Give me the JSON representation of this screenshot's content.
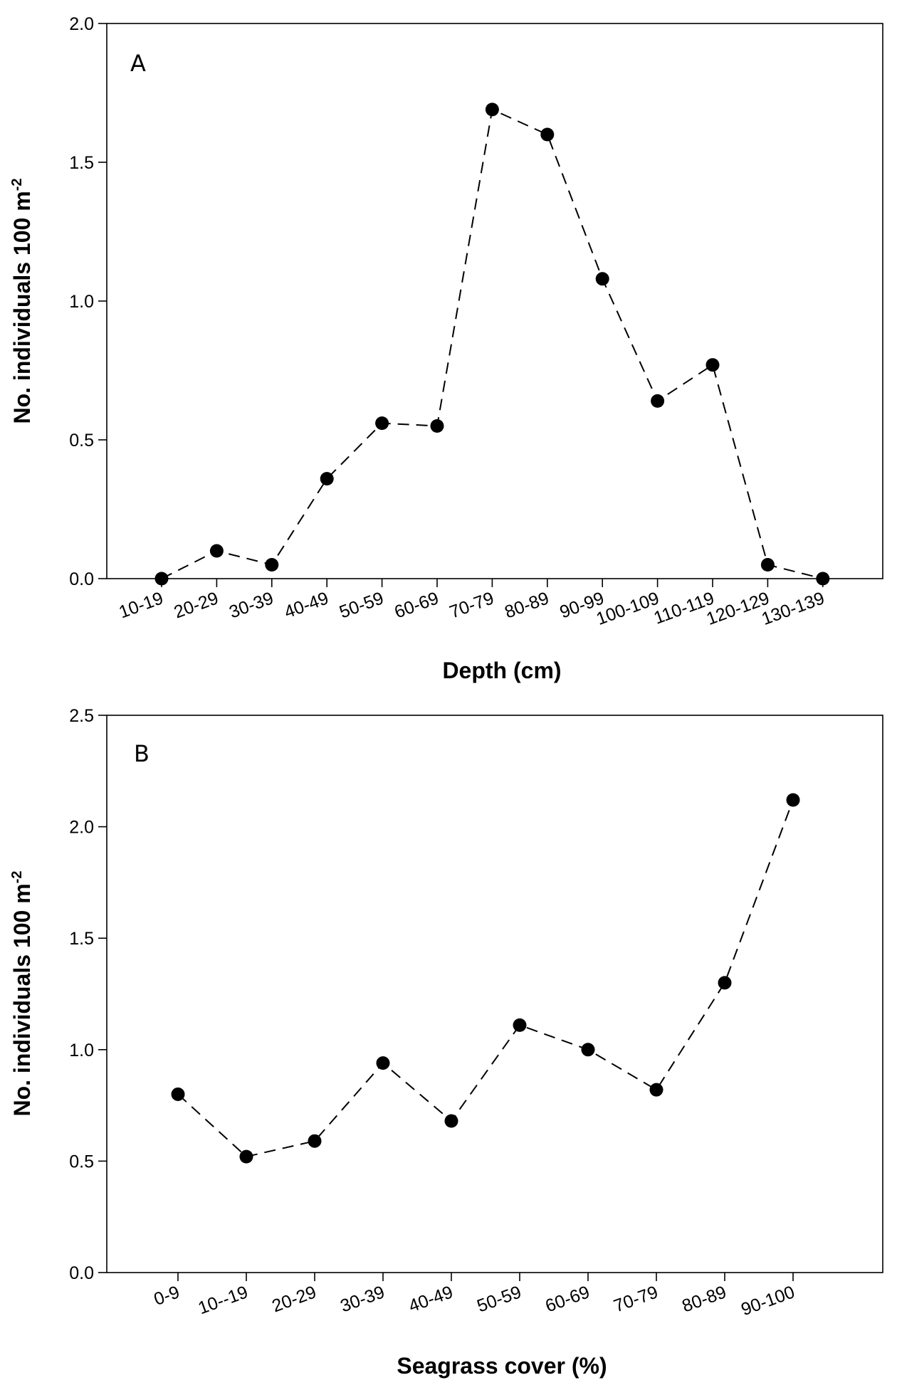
{
  "chart_data": [
    {
      "type": "line",
      "panel_label": "A",
      "categories": [
        "10-19",
        "20-29",
        "30-39",
        "40-49",
        "50-59",
        "60-69",
        "70-79",
        "80-89",
        "90-99",
        "100-109",
        "110-119",
        "120-129",
        "130-139"
      ],
      "values": [
        0.0,
        0.1,
        0.05,
        0.36,
        0.56,
        0.55,
        1.69,
        1.6,
        1.08,
        0.64,
        0.77,
        0.05,
        0.0
      ],
      "xlabel": "Depth (cm)",
      "ylabel": "No. individuals 100 m",
      "ylabel_superscript": "-2",
      "ylim": [
        0,
        2.0
      ],
      "yticks": [
        0.0,
        0.5,
        1.0,
        1.5,
        2.0
      ],
      "ytick_labels": [
        "0.0",
        "0.5",
        "1.0",
        "1.5",
        "2.0"
      ],
      "grid": false,
      "line_style": "dashed",
      "marker": "filled-circle"
    },
    {
      "type": "line",
      "panel_label": "B",
      "categories": [
        "0-9",
        "10--19",
        "20-29",
        "30-39",
        "40-49",
        "50-59",
        "60-69",
        "70-79",
        "80-89",
        "90-100"
      ],
      "values": [
        0.8,
        0.52,
        0.59,
        0.94,
        0.68,
        1.11,
        1.0,
        0.82,
        1.3,
        2.12
      ],
      "xlabel": "Seagrass cover (%)",
      "ylabel": "No. individuals 100 m",
      "ylabel_superscript": "-2",
      "ylim": [
        0,
        2.5
      ],
      "yticks": [
        0.0,
        0.5,
        1.0,
        1.5,
        2.0,
        2.5
      ],
      "ytick_labels": [
        "0.0",
        "0.5",
        "1.0",
        "1.5",
        "2.0",
        "2.5"
      ],
      "grid": false,
      "line_style": "dashed",
      "marker": "filled-circle"
    }
  ]
}
